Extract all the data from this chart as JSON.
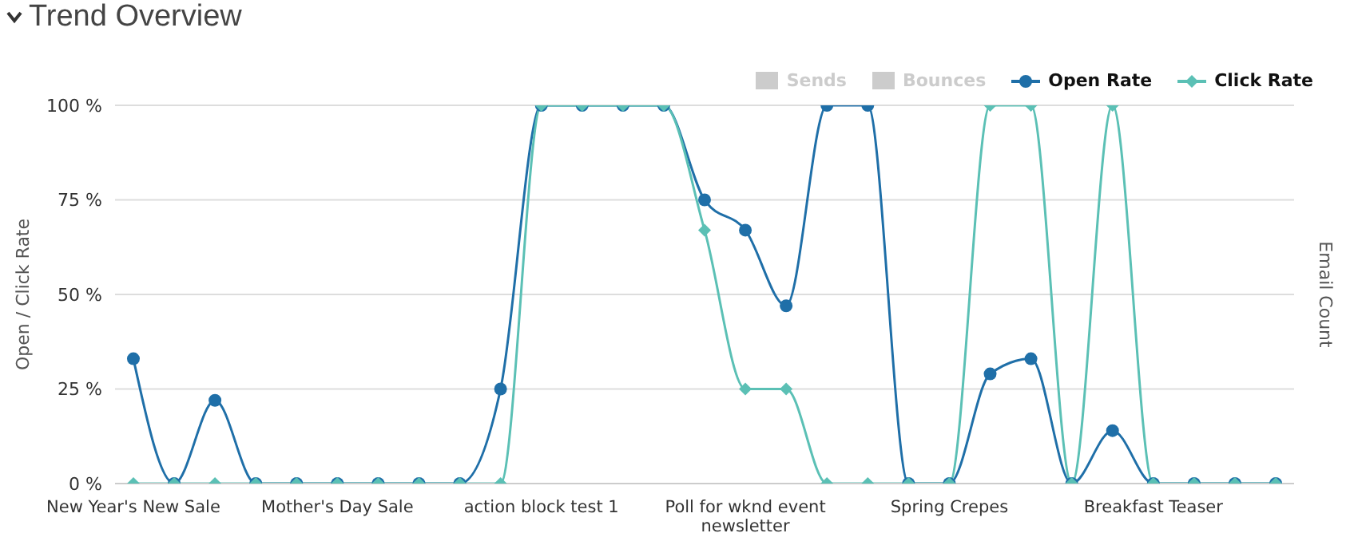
{
  "chart_data": {
    "type": "line",
    "title": "Trend Overview",
    "ylabel": "Open / Click Rate",
    "y2label": "Email Count",
    "categories": [
      "New Year's New Sale",
      null,
      null,
      null,
      null,
      "Mother's Day Sale",
      null,
      null,
      null,
      null,
      "action block test 1",
      null,
      null,
      null,
      null,
      "Poll for wknd event newsletter",
      null,
      null,
      null,
      null,
      "Spring Crepes",
      null,
      null,
      null,
      null,
      "Breakfast Teaser",
      null,
      null,
      null
    ],
    "series": [
      {
        "name": "Sends",
        "type": "bar",
        "color": "#cccccc",
        "values": [
          null,
          null,
          null,
          null,
          null,
          null,
          null,
          null,
          null,
          null,
          null,
          null,
          null,
          null,
          null,
          null,
          null,
          null,
          null,
          null,
          null,
          null,
          null,
          null,
          null,
          null,
          null,
          null,
          null
        ]
      },
      {
        "name": "Bounces",
        "type": "bar",
        "color": "#cccccc",
        "values": [
          null,
          null,
          null,
          null,
          null,
          null,
          null,
          null,
          null,
          null,
          null,
          null,
          null,
          null,
          null,
          null,
          null,
          null,
          null,
          null,
          null,
          null,
          null,
          null,
          null,
          null,
          null,
          null,
          null
        ]
      },
      {
        "name": "Open Rate",
        "color": "#1f6fa8",
        "marker": "circle",
        "values": [
          33,
          0,
          22,
          0,
          0,
          0,
          0,
          0,
          0,
          25,
          100,
          100,
          100,
          100,
          75,
          67,
          47,
          100,
          100,
          0,
          0,
          29,
          33,
          0,
          14,
          0,
          0,
          0,
          0
        ]
      },
      {
        "name": "Click Rate",
        "color": "#5bc0b5",
        "marker": "diamond",
        "values": [
          0,
          0,
          0,
          0,
          0,
          0,
          0,
          0,
          0,
          0,
          100,
          100,
          100,
          100,
          67,
          25,
          25,
          0,
          0,
          0,
          0,
          100,
          100,
          0,
          100,
          0,
          0,
          0,
          0
        ]
      }
    ],
    "ylim": [
      0,
      100
    ],
    "yticks": [
      {
        "value": 0,
        "label": "0 %"
      },
      {
        "value": 25,
        "label": "25 %"
      },
      {
        "value": 50,
        "label": "50 %"
      },
      {
        "value": 75,
        "label": "75 %"
      },
      {
        "value": 100,
        "label": "100 %"
      }
    ],
    "grid": "y",
    "legend": "top right"
  }
}
